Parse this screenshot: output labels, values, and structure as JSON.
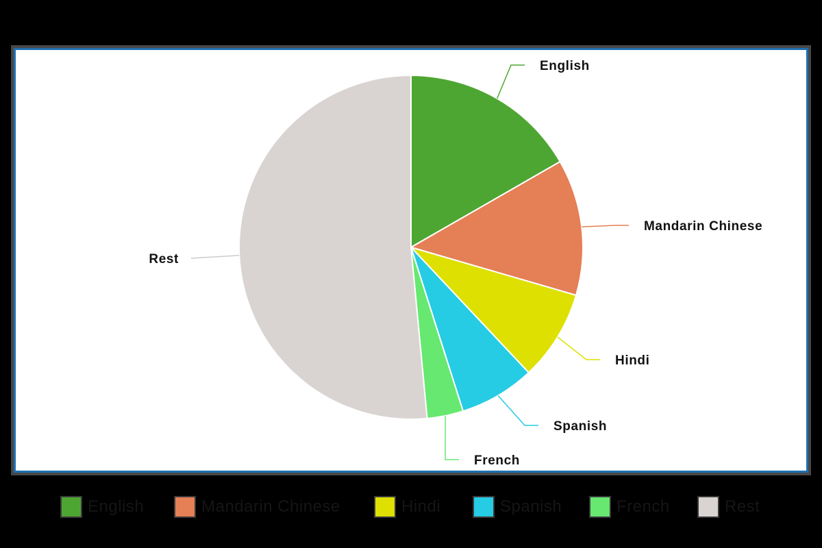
{
  "chart_data": {
    "type": "pie",
    "title": "",
    "start_angle_deg": 0,
    "direction": "clockwise",
    "slices": [
      {
        "label": "English",
        "value": 16.7,
        "color": "#4ea632"
      },
      {
        "label": "Mandarin Chinese",
        "value": 12.8,
        "color": "#e57f56"
      },
      {
        "label": "Hindi",
        "value": 8.5,
        "color": "#dde000"
      },
      {
        "label": "Spanish",
        "value": 7.1,
        "color": "#26cbe4"
      },
      {
        "label": "French",
        "value": 3.4,
        "color": "#66e871"
      },
      {
        "label": "Rest",
        "value": 51.5,
        "color": "#d9d4d2"
      }
    ],
    "legend": {
      "position": "bottom",
      "entries": [
        "English",
        "Mandarin Chinese",
        "Hindi",
        "Spanish",
        "French",
        "Rest"
      ]
    }
  }
}
